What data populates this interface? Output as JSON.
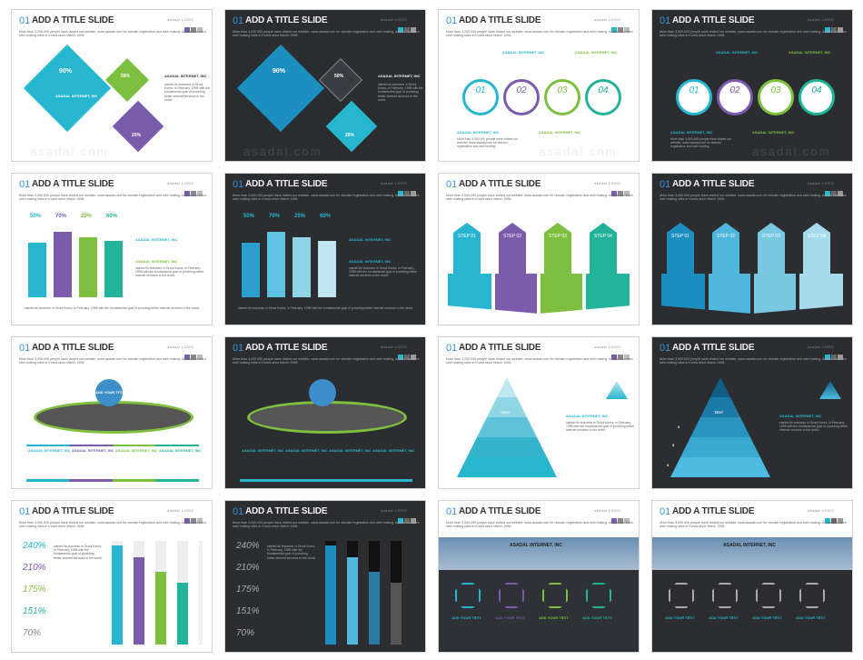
{
  "slide_title": "ADD A TITLE SLIDE",
  "slide_number": "01",
  "logo": "asadal LOGO",
  "subtitle": "More than 3,000,000 people have visited our website, www.asadal.com for domain registration and web hosting. Asadal has been web hosting sites in Korea since March 1998.",
  "watermark": "asadal.com",
  "company": "ASADAL INTERNET, INC",
  "company_caps": "ASADAL INTERNET, INC",
  "body_short": "started its business in Seoul Korea, in February, 1998 with the fundamental goal of providing better internet services to the world.",
  "body_long": "More than 3,000,000 people have visited our website, www.asadal.com for domain registration and web hosting.",
  "percents_1": [
    "90%",
    "50%",
    "25%"
  ],
  "circles": [
    "01",
    "02",
    "03",
    "04"
  ],
  "bar_percents": [
    "50%",
    "70%",
    "25%",
    "60%"
  ],
  "steps": [
    "STEP 01",
    "STEP 02",
    "STEP 03",
    "STEP 04"
  ],
  "add_your_title": "ADD YOUR TITLE",
  "text_label": "TEXT",
  "big_values": [
    "240%",
    "210%",
    "175%",
    "151%",
    "70%"
  ],
  "add_your_text": "ADD YOUR TEXT",
  "pyramid_nums": [
    "1",
    "2",
    "3",
    "4"
  ],
  "colors": {
    "accent_blue": "#3b8fd8",
    "cyan": "#27b6cf",
    "purple": "#7b5bab",
    "green": "#7fbf3f",
    "teal": "#23b39a"
  }
}
